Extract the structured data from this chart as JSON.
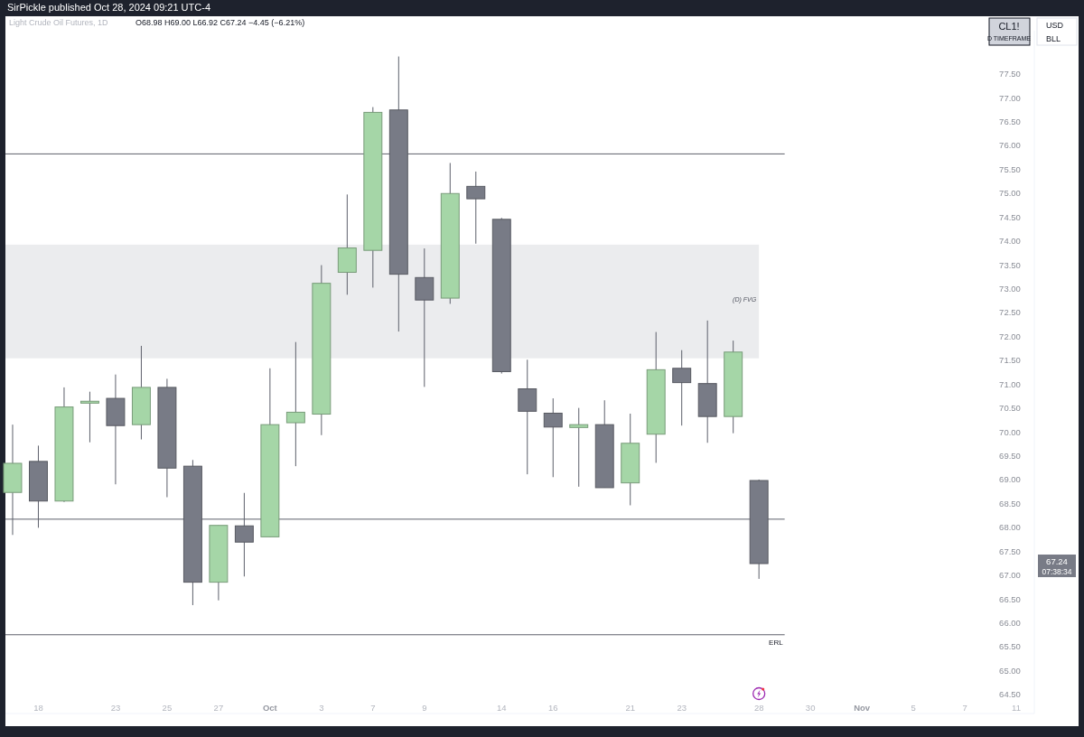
{
  "chart_data": {
    "type": "candlestick",
    "title": "Light Crude Oil Futures, 1D",
    "subtitle": "O68.98 H69.00 L66.92 C67.24 −4.45 (−6.21%)",
    "categories": [
      null,
      "18",
      null,
      null,
      "23",
      null,
      "25",
      null,
      "27",
      null,
      "Oct",
      null,
      "3",
      null,
      "7",
      null,
      "9",
      null,
      null,
      "14",
      null,
      "16",
      null,
      null,
      "21",
      null,
      "23",
      null,
      null,
      "28",
      null,
      "30",
      null,
      "Nov",
      null,
      "5",
      null,
      "7",
      null,
      "11"
    ],
    "ohlc": [
      [
        68.73,
        70.15,
        67.84,
        69.34
      ],
      [
        69.38,
        69.71,
        67.99,
        68.55
      ],
      [
        68.55,
        70.93,
        68.53,
        70.52
      ],
      [
        70.6,
        70.84,
        69.78,
        70.64
      ],
      [
        70.7,
        71.2,
        68.9,
        70.13
      ],
      [
        70.15,
        71.8,
        69.84,
        70.93
      ],
      [
        70.93,
        71.11,
        68.63,
        69.24
      ],
      [
        69.28,
        69.41,
        66.37,
        66.85
      ],
      [
        66.85,
        68.04,
        66.47,
        68.04
      ],
      [
        68.03,
        68.72,
        66.97,
        67.69
      ],
      [
        67.8,
        71.33,
        67.8,
        70.15
      ],
      [
        70.19,
        71.88,
        69.28,
        70.41
      ],
      [
        70.37,
        73.49,
        69.93,
        73.11
      ],
      [
        73.34,
        74.97,
        72.87,
        73.85
      ],
      [
        73.8,
        76.8,
        73.02,
        76.69
      ],
      [
        76.74,
        77.86,
        72.1,
        73.3
      ],
      [
        73.23,
        73.84,
        70.94,
        72.76
      ],
      [
        72.8,
        75.63,
        72.68,
        74.99
      ],
      [
        75.14,
        75.45,
        73.94,
        74.88
      ],
      [
        74.45,
        74.48,
        71.22,
        71.26
      ],
      [
        70.9,
        71.51,
        69.11,
        70.43
      ],
      [
        70.39,
        70.7,
        69.05,
        70.1
      ],
      [
        70.09,
        70.5,
        68.85,
        70.15
      ],
      [
        70.15,
        70.66,
        68.83,
        68.83
      ],
      [
        68.93,
        70.38,
        68.46,
        69.76
      ],
      [
        69.95,
        72.09,
        69.35,
        71.3
      ],
      [
        71.33,
        71.71,
        70.13,
        71.03
      ],
      [
        71.01,
        72.33,
        69.77,
        70.32
      ],
      [
        70.32,
        71.91,
        69.97,
        71.67
      ],
      [
        68.98,
        69.0,
        66.92,
        67.24
      ],
      null,
      null,
      null,
      null,
      null,
      null,
      null,
      null,
      null,
      null
    ],
    "colors": [
      "#a5d6a7",
      "#787b86",
      "#a5d6a7",
      "#a5d6a7",
      "#787b86",
      "#a5d6a7",
      "#787b86",
      "#787b86",
      "#a5d6a7",
      "#787b86",
      "#a5d6a7",
      "#a5d6a7",
      "#a5d6a7",
      "#a5d6a7",
      "#a5d6a7",
      "#787b86",
      "#787b86",
      "#a5d6a7",
      "#787b86",
      "#787b86",
      "#787b86",
      "#787b86",
      "#a5d6a7",
      "#787b86",
      "#a5d6a7",
      "#a5d6a7",
      "#787b86",
      "#787b86",
      "#a5d6a7",
      "#787b86",
      null,
      null,
      null,
      null,
      null,
      null,
      null,
      null,
      null,
      null
    ],
    "ylim": [
      64.1,
      78.4
    ],
    "yticks": [
      {
        "value": 64.5,
        "label": "64.50"
      },
      {
        "value": 65,
        "label": "65.00"
      },
      {
        "value": 65.5,
        "label": "65.50"
      },
      {
        "value": 66,
        "label": "66.00"
      },
      {
        "value": 66.5,
        "label": "66.50"
      },
      {
        "value": 67,
        "label": "67.00"
      },
      {
        "value": 67.5,
        "label": "67.50"
      },
      {
        "value": 68,
        "label": "68.00"
      },
      {
        "value": 68.5,
        "label": "68.50"
      },
      {
        "value": 69,
        "label": "69.00"
      },
      {
        "value": 69.5,
        "label": "69.50"
      },
      {
        "value": 70,
        "label": "70.00"
      },
      {
        "value": 70.5,
        "label": "70.50"
      },
      {
        "value": 71,
        "label": "71.00"
      },
      {
        "value": 71.5,
        "label": "71.50"
      },
      {
        "value": 72,
        "label": "72.00"
      },
      {
        "value": 72.5,
        "label": "72.50"
      },
      {
        "value": 73,
        "label": "73.00"
      },
      {
        "value": 73.5,
        "label": "73.50"
      },
      {
        "value": 74,
        "label": "74.00"
      },
      {
        "value": 74.5,
        "label": "74.50"
      },
      {
        "value": 75,
        "label": "75.00"
      },
      {
        "value": 75.5,
        "label": "75.50"
      },
      {
        "value": 76,
        "label": "76.00"
      },
      {
        "value": 76.5,
        "label": "76.50"
      },
      {
        "value": 77,
        "label": "77.00"
      },
      {
        "value": 77.5,
        "label": "77.50"
      }
    ],
    "ref_lines": [
      {
        "axis": "y",
        "value": 75.82,
        "color": "#5d606b"
      },
      {
        "axis": "y",
        "value": 68.17,
        "color": "#5d606b"
      },
      {
        "axis": "y",
        "value": 65.75,
        "label": "ERL",
        "color": "#5d606b"
      }
    ],
    "bands": [
      {
        "axis": "y",
        "from": 71.54,
        "to": 73.92,
        "label": "(D) FVG",
        "color": "#ebecee"
      }
    ],
    "annotations": [
      "SirPickle published Oct 28, 2024 09:21 UTC-4",
      "CL1!",
      "D TIMEFRAME",
      "USD",
      "BLL",
      "67.24",
      "07:38:34"
    ],
    "grid": false
  }
}
